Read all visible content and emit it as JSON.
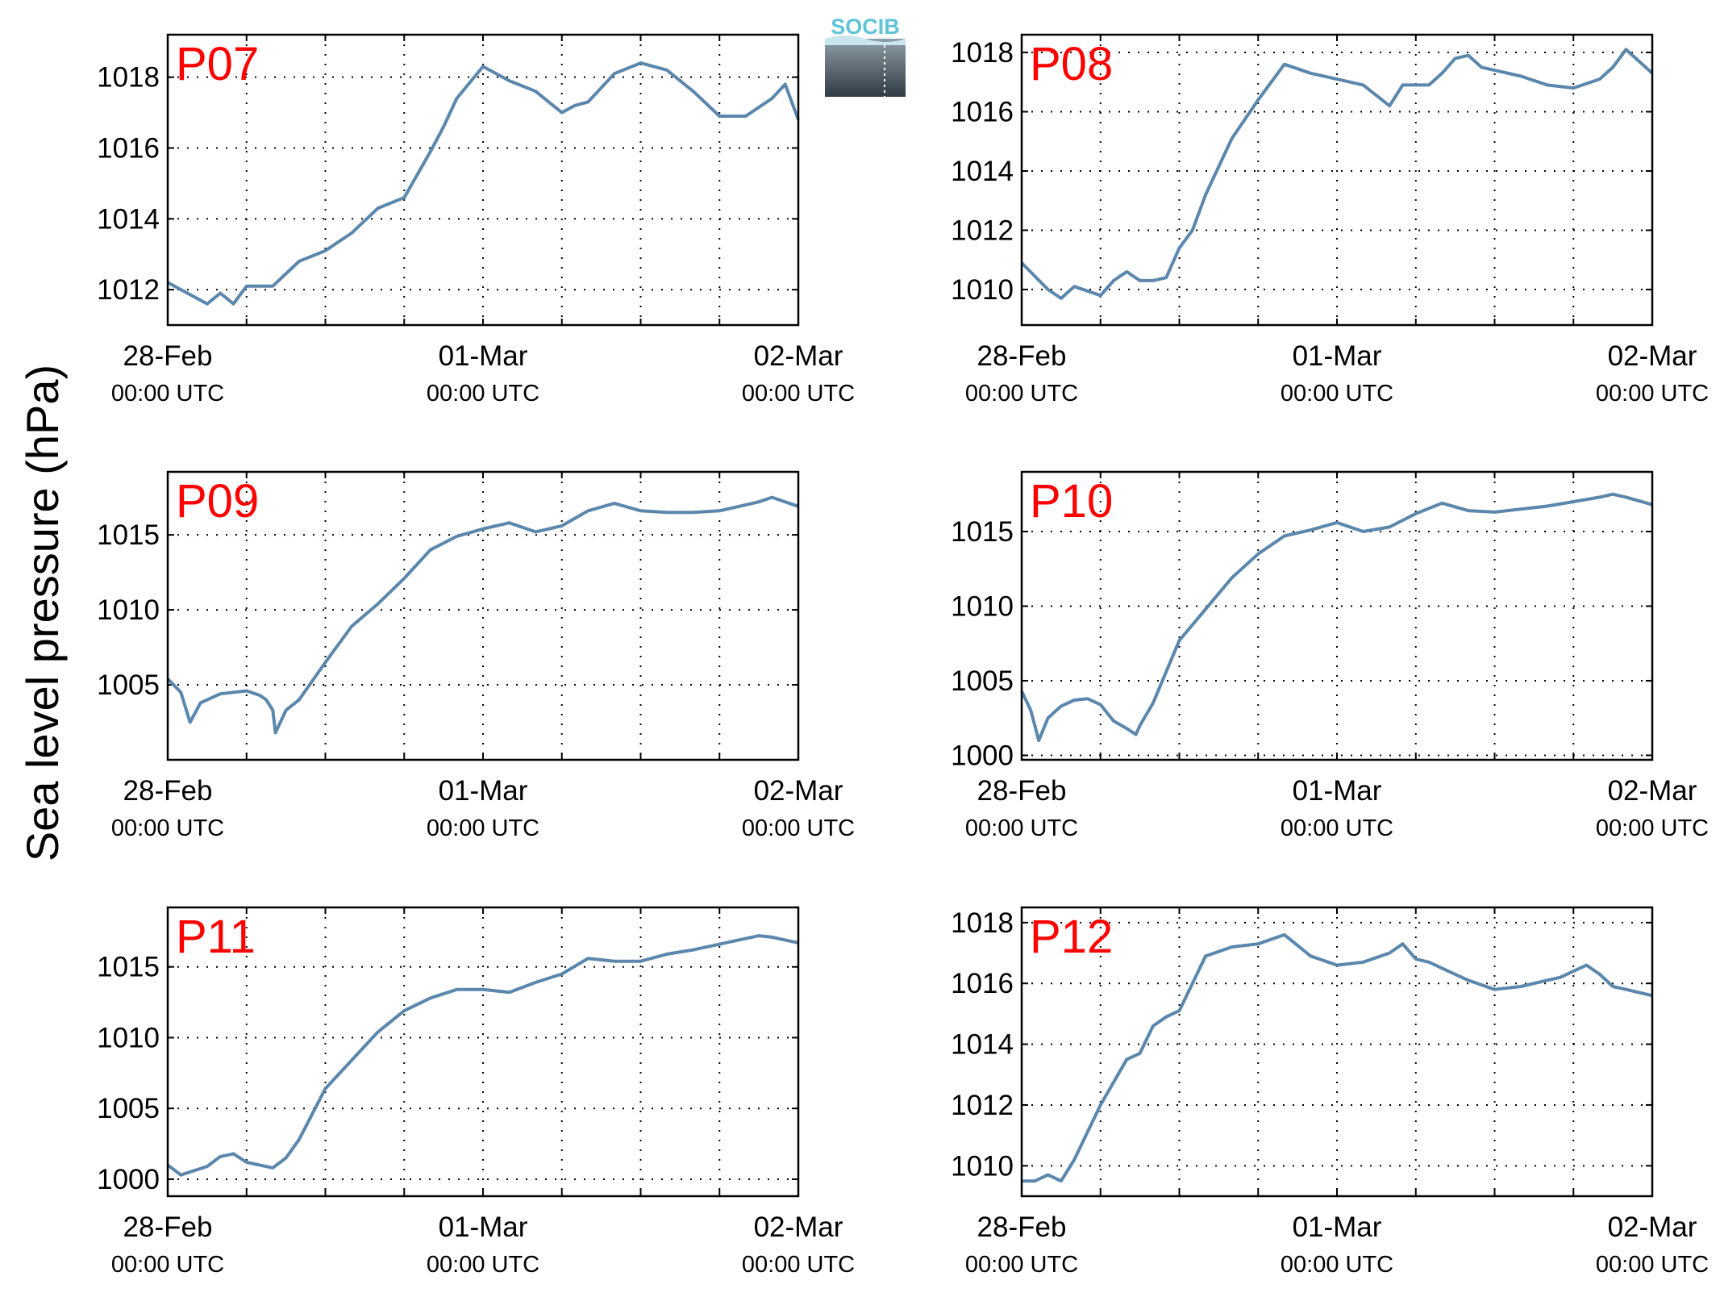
{
  "figure": {
    "ylabel": "Sea level pressure (hPa)",
    "logo_text": "SOCIB",
    "line_color": "#5b87ad",
    "label_color": "#ff0000"
  },
  "chart_data": [
    {
      "type": "line",
      "panel_label": "P07",
      "xlabel": "",
      "ylabel": "Sea level pressure (hPa)",
      "x_ticks": [
        {
          "label": "28-Feb",
          "sub": "00:00 UTC"
        },
        {
          "label": "01-Mar",
          "sub": "00:00 UTC"
        },
        {
          "label": "02-Mar",
          "sub": "00:00 UTC"
        }
      ],
      "x_hours": [
        0,
        2,
        3,
        4,
        5,
        6,
        8,
        10,
        12,
        14,
        16,
        18,
        20,
        21,
        22,
        24,
        26,
        28,
        30,
        31,
        32,
        34,
        36,
        38,
        40,
        42,
        44,
        46,
        47,
        48
      ],
      "y": [
        1012.2,
        1011.8,
        1011.6,
        1011.9,
        1011.6,
        1012.1,
        1012.1,
        1012.8,
        1013.1,
        1013.6,
        1014.3,
        1014.6,
        1015.9,
        1016.6,
        1017.4,
        1018.3,
        1017.9,
        1017.6,
        1017.0,
        1017.2,
        1017.3,
        1018.1,
        1018.4,
        1018.2,
        1017.6,
        1016.9,
        1016.9,
        1017.4,
        1017.8,
        1016.8
      ],
      "ylim": [
        1011,
        1019.2
      ],
      "yticks": [
        1012,
        1014,
        1016,
        1018
      ],
      "grid": true
    },
    {
      "type": "line",
      "panel_label": "P08",
      "xlabel": "",
      "ylabel": "Sea level pressure (hPa)",
      "x_ticks": [
        {
          "label": "28-Feb",
          "sub": "00:00 UTC"
        },
        {
          "label": "01-Mar",
          "sub": "00:00 UTC"
        },
        {
          "label": "02-Mar",
          "sub": "00:00 UTC"
        }
      ],
      "x_hours": [
        0,
        2,
        3,
        4,
        6,
        7,
        8,
        9,
        10,
        11,
        12,
        13,
        14,
        16,
        18,
        20,
        22,
        24,
        26,
        28,
        29,
        31,
        32,
        33,
        34,
        35,
        36,
        38,
        40,
        42,
        44,
        45,
        46,
        48
      ],
      "y": [
        1010.9,
        1010.0,
        1009.7,
        1010.1,
        1009.8,
        1010.3,
        1010.6,
        1010.3,
        1010.3,
        1010.4,
        1011.4,
        1012.0,
        1013.2,
        1015.1,
        1016.4,
        1017.6,
        1017.3,
        1017.1,
        1016.9,
        1016.2,
        1016.9,
        1016.9,
        1017.3,
        1017.8,
        1017.9,
        1017.5,
        1017.4,
        1017.2,
        1016.9,
        1016.8,
        1017.1,
        1017.5,
        1018.1,
        1017.3
      ],
      "ylim": [
        1008.8,
        1018.6
      ],
      "yticks": [
        1010,
        1012,
        1014,
        1016,
        1018
      ],
      "grid": true
    },
    {
      "type": "line",
      "panel_label": "P09",
      "xlabel": "",
      "ylabel": "Sea level pressure (hPa)",
      "x_ticks": [
        {
          "label": "28-Feb",
          "sub": "00:00 UTC"
        },
        {
          "label": "01-Mar",
          "sub": "00:00 UTC"
        },
        {
          "label": "02-Mar",
          "sub": "00:00 UTC"
        }
      ],
      "x_hours": [
        0,
        1,
        1.7,
        2.5,
        4,
        6,
        7,
        7.5,
        8,
        8.2,
        9,
        10,
        12,
        14,
        16,
        18,
        20,
        22,
        24,
        26,
        28,
        30,
        32,
        34,
        36,
        38,
        40,
        42,
        44,
        45,
        46,
        48
      ],
      "y": [
        1005.4,
        1004.5,
        1002.5,
        1003.8,
        1004.4,
        1004.6,
        1004.3,
        1004.0,
        1003.3,
        1001.8,
        1003.3,
        1004.0,
        1006.5,
        1008.9,
        1010.4,
        1012.1,
        1014.0,
        1014.9,
        1015.4,
        1015.8,
        1015.2,
        1015.6,
        1016.6,
        1017.1,
        1016.6,
        1016.5,
        1016.5,
        1016.6,
        1017.0,
        1017.2,
        1017.5,
        1016.9
      ],
      "ylim": [
        1000,
        1019.2
      ],
      "yticks": [
        1005,
        1010,
        1015
      ],
      "grid": true
    },
    {
      "type": "line",
      "panel_label": "P10",
      "xlabel": "",
      "ylabel": "Sea level pressure (hPa)",
      "x_ticks": [
        {
          "label": "28-Feb",
          "sub": "00:00 UTC"
        },
        {
          "label": "01-Mar",
          "sub": "00:00 UTC"
        },
        {
          "label": "02-Mar",
          "sub": "00:00 UTC"
        }
      ],
      "x_hours": [
        0,
        0.7,
        1.3,
        2,
        3,
        4,
        5,
        6,
        7,
        8,
        8.7,
        9,
        10,
        12,
        14,
        16,
        18,
        20,
        22,
        24,
        26,
        28,
        30,
        32,
        34,
        36,
        38,
        40,
        42,
        44,
        45,
        46,
        48
      ],
      "y": [
        1004.3,
        1003.0,
        1001.0,
        1002.5,
        1003.3,
        1003.7,
        1003.8,
        1003.4,
        1002.3,
        1001.8,
        1001.4,
        1002.0,
        1003.5,
        1007.7,
        1009.8,
        1011.9,
        1013.5,
        1014.7,
        1015.1,
        1015.6,
        1015.0,
        1015.3,
        1016.2,
        1016.9,
        1016.4,
        1016.3,
        1016.5,
        1016.7,
        1017.0,
        1017.3,
        1017.5,
        1017.3,
        1016.8
      ],
      "ylim": [
        999.7,
        1019
      ],
      "yticks": [
        1000,
        1005,
        1010,
        1015
      ],
      "grid": true
    },
    {
      "type": "line",
      "panel_label": "P11",
      "xlabel": "",
      "ylabel": "Sea level pressure (hPa)",
      "x_ticks": [
        {
          "label": "28-Feb",
          "sub": "00:00 UTC"
        },
        {
          "label": "01-Mar",
          "sub": "00:00 UTC"
        },
        {
          "label": "02-Mar",
          "sub": "00:00 UTC"
        }
      ],
      "x_hours": [
        0,
        1,
        2,
        3,
        4,
        5,
        6,
        7,
        8,
        9,
        10,
        12,
        14,
        16,
        18,
        20,
        22,
        24,
        26,
        28,
        30,
        32,
        34,
        36,
        38,
        40,
        42,
        44,
        45,
        46,
        48
      ],
      "y": [
        1001.0,
        1000.3,
        1000.6,
        1000.9,
        1001.6,
        1001.8,
        1001.2,
        1001.0,
        1000.8,
        1001.5,
        1002.8,
        1006.4,
        1008.4,
        1010.4,
        1011.9,
        1012.8,
        1013.4,
        1013.4,
        1013.2,
        1013.9,
        1014.5,
        1015.6,
        1015.4,
        1015.4,
        1015.9,
        1016.2,
        1016.6,
        1017.0,
        1017.2,
        1017.1,
        1016.7
      ],
      "ylim": [
        998.8,
        1019.2
      ],
      "yticks": [
        1000,
        1005,
        1010,
        1015
      ],
      "grid": true
    },
    {
      "type": "line",
      "panel_label": "P12",
      "xlabel": "",
      "ylabel": "Sea level pressure (hPa)",
      "x_ticks": [
        {
          "label": "28-Feb",
          "sub": "00:00 UTC"
        },
        {
          "label": "01-Mar",
          "sub": "00:00 UTC"
        },
        {
          "label": "02-Mar",
          "sub": "00:00 UTC"
        }
      ],
      "x_hours": [
        0,
        1,
        2,
        3,
        4,
        6,
        8,
        9,
        10,
        11,
        12,
        14,
        16,
        18,
        20,
        22,
        24,
        26,
        28,
        29,
        30,
        31,
        32,
        34,
        36,
        38,
        40,
        41,
        42,
        43,
        44,
        45,
        46,
        47,
        48
      ],
      "y": [
        1009.5,
        1009.5,
        1009.7,
        1009.5,
        1010.2,
        1012.0,
        1013.5,
        1013.7,
        1014.6,
        1014.9,
        1015.1,
        1016.9,
        1017.2,
        1017.3,
        1017.6,
        1016.9,
        1016.6,
        1016.7,
        1017.0,
        1017.3,
        1016.8,
        1016.7,
        1016.5,
        1016.1,
        1015.8,
        1015.9,
        1016.1,
        1016.2,
        1016.4,
        1016.6,
        1016.3,
        1015.9,
        1015.8,
        1015.7,
        1015.6
      ],
      "ylim": [
        1009.0,
        1018.5
      ],
      "yticks": [
        1010,
        1012,
        1014,
        1016,
        1018
      ],
      "grid": true
    }
  ]
}
